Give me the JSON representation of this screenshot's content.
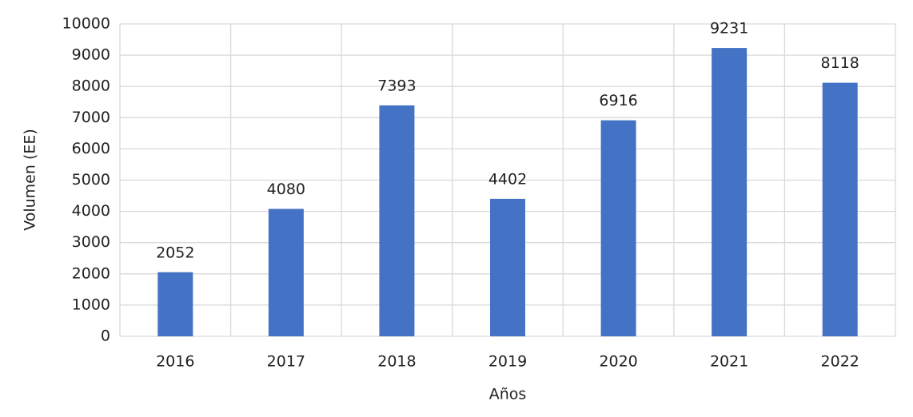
{
  "chart_data": {
    "type": "bar",
    "x_label": "Años",
    "y_label": "Volumen (EE)",
    "categories": [
      "2016",
      "2017",
      "2018",
      "2019",
      "2020",
      "2021",
      "2022"
    ],
    "values": [
      2052,
      4080,
      7393,
      4402,
      6916,
      9231,
      8118
    ],
    "color": "#4472c4",
    "ylim": [
      0,
      10000
    ],
    "yticks": [
      0,
      1000,
      2000,
      3000,
      4000,
      5000,
      6000,
      7000,
      8000,
      9000,
      10000
    ],
    "grid": true
  }
}
